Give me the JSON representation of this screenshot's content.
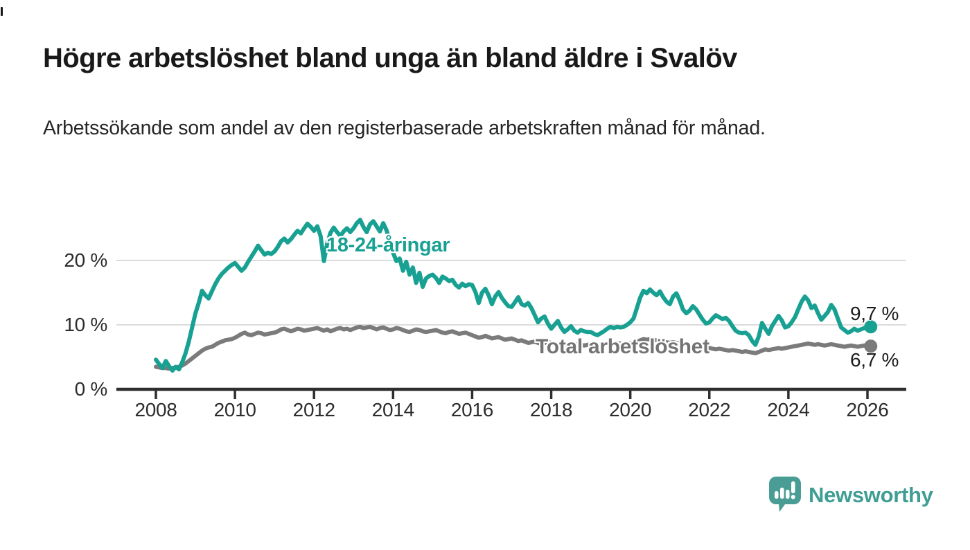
{
  "header": {
    "title": "Högre arbetslöshet bland unga än bland äldre i Svalöv",
    "subtitle": "Arbetssökande som andel av den registerbaserade arbetskraften månad för månad."
  },
  "chart_data": {
    "type": "line",
    "x_start_year": 2008,
    "points_per_month": 1,
    "x_tick_years": [
      2008,
      2010,
      2012,
      2014,
      2016,
      2018,
      2020,
      2022,
      2024,
      2026
    ],
    "y_ticks": [
      {
        "value": 0,
        "label": "0 %"
      },
      {
        "value": 10,
        "label": "10 %"
      },
      {
        "value": 20,
        "label": "20 %"
      }
    ],
    "ylim": [
      0,
      27.5
    ],
    "grid": "horizontal",
    "colors": {
      "young": "#18a192",
      "total": "#7b7b7b",
      "gridline": "#dcdcdc",
      "axis": "#2e2e2e"
    },
    "series": [
      {
        "name": "18-24-åringar",
        "color": "#18a192",
        "end_label": "9,7 %",
        "end_value": 9.7,
        "values": [
          4.6,
          3.9,
          3.3,
          4.4,
          3.6,
          2.9,
          3.5,
          3.1,
          4.2,
          5.6,
          7.4,
          9.6,
          11.8,
          13.4,
          15.3,
          14.6,
          14.1,
          15.2,
          16.3,
          17.2,
          17.9,
          18.4,
          18.9,
          19.3,
          19.6,
          19.0,
          18.4,
          18.9,
          19.8,
          20.6,
          21.4,
          22.3,
          21.6,
          20.9,
          21.2,
          21.0,
          21.4,
          22.1,
          23.0,
          23.4,
          22.8,
          23.3,
          24.0,
          24.6,
          24.2,
          25.0,
          25.7,
          25.2,
          24.6,
          25.3,
          23.8,
          19.9,
          22.6,
          24.3,
          25.1,
          24.4,
          23.8,
          24.5,
          25.0,
          24.4,
          25.0,
          25.8,
          26.3,
          25.2,
          24.4,
          25.6,
          26.1,
          25.3,
          24.5,
          25.8,
          24.7,
          23.0,
          21.2,
          19.9,
          20.3,
          18.4,
          19.8,
          17.8,
          18.9,
          16.5,
          18.1,
          15.9,
          17.2,
          17.6,
          17.8,
          17.3,
          16.5,
          17.5,
          17.2,
          16.8,
          17.0,
          16.2,
          15.8,
          16.4,
          16.0,
          16.3,
          16.2,
          15.1,
          13.4,
          15.0,
          15.6,
          14.6,
          13.2,
          14.4,
          15.1,
          14.2,
          13.5,
          12.9,
          12.8,
          13.5,
          14.3,
          13.2,
          13.0,
          13.4,
          12.6,
          11.5,
          10.4,
          11.0,
          11.3,
          10.2,
          9.4,
          10.0,
          10.6,
          9.6,
          8.9,
          9.3,
          9.8,
          9.1,
          8.8,
          9.2,
          9.0,
          8.9,
          8.9,
          8.6,
          8.4,
          8.7,
          9.0,
          9.4,
          9.7,
          9.5,
          9.7,
          9.6,
          9.7,
          10.0,
          10.4,
          11.0,
          12.6,
          14.2,
          15.3,
          14.9,
          15.5,
          15.0,
          14.6,
          15.2,
          14.3,
          13.6,
          13.2,
          14.4,
          14.9,
          13.8,
          12.4,
          11.8,
          12.2,
          12.9,
          12.4,
          11.6,
          10.8,
          10.2,
          10.4,
          11.0,
          11.5,
          11.2,
          10.9,
          11.1,
          10.6,
          9.8,
          9.1,
          8.8,
          8.7,
          8.8,
          8.4,
          7.5,
          6.9,
          8.2,
          10.3,
          9.4,
          8.6,
          9.8,
          10.6,
          11.4,
          10.7,
          9.6,
          9.8,
          10.4,
          11.2,
          12.4,
          13.6,
          14.4,
          13.8,
          12.6,
          13.0,
          11.8,
          10.8,
          11.4,
          12.0,
          13.1,
          12.4,
          11.0,
          9.6,
          9.2,
          8.8,
          9.0,
          9.4,
          9.1,
          9.3,
          9.5,
          9.4,
          9.7
        ]
      },
      {
        "name": "Total arbetslöshet",
        "color": "#7b7b7b",
        "end_label": "6,7 %",
        "end_value": 6.7,
        "values": [
          3.5,
          3.4,
          3.3,
          3.3,
          3.2,
          3.3,
          3.4,
          3.5,
          3.7,
          4.0,
          4.4,
          4.8,
          5.2,
          5.6,
          6.0,
          6.3,
          6.5,
          6.6,
          6.9,
          7.2,
          7.4,
          7.6,
          7.7,
          7.8,
          8.0,
          8.3,
          8.6,
          8.8,
          8.5,
          8.4,
          8.6,
          8.8,
          8.7,
          8.5,
          8.6,
          8.7,
          8.8,
          9.0,
          9.3,
          9.4,
          9.2,
          9.0,
          9.2,
          9.4,
          9.3,
          9.1,
          9.2,
          9.3,
          9.4,
          9.5,
          9.3,
          9.1,
          9.3,
          9.0,
          9.2,
          9.4,
          9.5,
          9.3,
          9.4,
          9.2,
          9.4,
          9.6,
          9.7,
          9.5,
          9.6,
          9.7,
          9.5,
          9.3,
          9.5,
          9.6,
          9.4,
          9.2,
          9.3,
          9.5,
          9.4,
          9.2,
          9.0,
          8.9,
          9.1,
          9.3,
          9.2,
          9.0,
          8.9,
          9.0,
          9.1,
          9.2,
          9.0,
          8.8,
          8.7,
          8.9,
          9.0,
          8.8,
          8.6,
          8.7,
          8.8,
          8.6,
          8.4,
          8.2,
          8.0,
          8.1,
          8.3,
          8.1,
          7.9,
          8.0,
          8.1,
          7.9,
          7.7,
          7.8,
          7.9,
          7.7,
          7.5,
          7.6,
          7.4,
          7.2,
          7.3,
          7.4,
          7.2,
          7.1,
          7.2,
          7.3,
          7.2,
          7.0,
          6.9,
          7.0,
          7.1,
          6.9,
          6.8,
          6.9,
          7.0,
          6.9,
          6.8,
          6.9,
          7.0,
          6.9,
          6.8,
          6.9,
          7.0,
          7.1,
          7.0,
          7.1,
          7.2,
          7.1,
          7.0,
          7.1,
          7.2,
          7.1,
          7.3,
          7.6,
          7.8,
          7.7,
          7.8,
          7.7,
          7.6,
          7.5,
          7.4,
          7.3,
          7.2,
          7.3,
          7.2,
          7.1,
          7.0,
          6.9,
          6.8,
          6.9,
          6.8,
          6.7,
          6.6,
          6.5,
          6.4,
          6.3,
          6.2,
          6.3,
          6.2,
          6.1,
          6.0,
          6.1,
          6.0,
          5.9,
          5.8,
          5.9,
          5.8,
          5.7,
          5.6,
          5.8,
          6.0,
          6.2,
          6.1,
          6.2,
          6.3,
          6.4,
          6.3,
          6.4,
          6.5,
          6.6,
          6.7,
          6.8,
          6.9,
          7.0,
          7.1,
          7.0,
          6.9,
          7.0,
          6.9,
          6.8,
          6.9,
          7.0,
          6.9,
          6.8,
          6.7,
          6.6,
          6.7,
          6.8,
          6.7,
          6.6,
          6.7,
          6.8,
          6.7,
          6.7
        ]
      }
    ]
  },
  "footer": {
    "brand": "Newsworthy",
    "brand_color": "#3f9e94",
    "logo_color": "#4a9d95"
  }
}
